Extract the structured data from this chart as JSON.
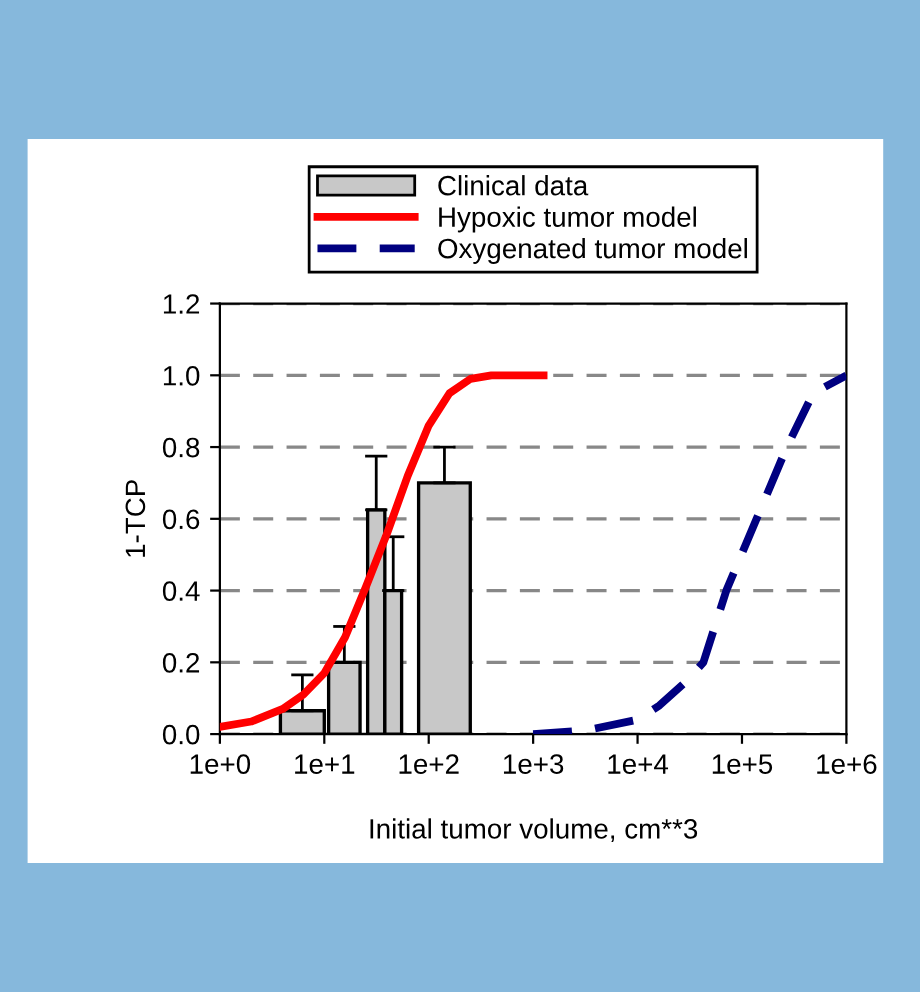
{
  "chart_data": {
    "type": "histogram",
    "xlabel": "Initial tumor volume, cm**3",
    "ylabel": "1-TCP",
    "log": "x",
    "xlim": [
      1,
      1000000
    ],
    "xticks": [
      {
        "value": 1,
        "label": "1e+0"
      },
      {
        "value": 10,
        "label": "1e+1"
      },
      {
        "value": 100,
        "label": "1e+2"
      },
      {
        "value": 1000,
        "label": "1e+3"
      },
      {
        "value": 10000,
        "label": "1e+4"
      },
      {
        "value": 100000,
        "label": "1e+5"
      },
      {
        "value": 1000000,
        "label": "1e+6"
      }
    ],
    "ylim": [
      0,
      1.2
    ],
    "yticks": [
      {
        "value": 0,
        "label": "0.0"
      },
      {
        "value": 0.2,
        "label": "0.2"
      },
      {
        "value": 0.4,
        "label": "0.4"
      },
      {
        "value": 0.6,
        "label": "0.6"
      },
      {
        "value": 0.8,
        "label": "0.8"
      },
      {
        "value": 1.0,
        "label": "1.0"
      },
      {
        "value": 1.2,
        "label": "1.2"
      }
    ],
    "grid": "y",
    "legend": "top",
    "series": [
      {
        "name": "Clinical data",
        "color": "#c8c8c8",
        "bins": [
          3.8,
          10,
          11,
          22,
          26,
          38,
          55,
          80,
          250
        ],
        "values": [
          0.065,
          null,
          0.2,
          null,
          0.625,
          0.4,
          null,
          0.7
        ],
        "errors": [
          [
            0.065,
            0.165
          ],
          null,
          [
            0.2,
            0.3
          ],
          null,
          [
            0.625,
            0.775
          ],
          [
            0.4,
            0.55
          ],
          null,
          [
            0.7,
            0.8
          ]
        ]
      },
      {
        "name": "Hypoxic tumor model",
        "type": "line",
        "line_style": "solid",
        "color": "#ff0000",
        "x": [
          1,
          2,
          4,
          6.3,
          10,
          15.8,
          25,
          40,
          63,
          100,
          158,
          251,
          398,
          1259
        ],
        "values": [
          0.02,
          0.035,
          0.07,
          0.11,
          0.17,
          0.27,
          0.41,
          0.56,
          0.72,
          0.86,
          0.95,
          0.99,
          1.0,
          1.0
        ]
      },
      {
        "name": "Oxygenated tumor model",
        "type": "line",
        "line_style": "dashed",
        "color": "#000080",
        "x": [
          1000,
          3162,
          10000,
          16200,
          30000,
          42700,
          70800,
          138000,
          269000,
          480000,
          1000000
        ],
        "values": [
          0,
          0.01,
          0.04,
          0.08,
          0.15,
          0.2,
          0.4,
          0.6,
          0.8,
          0.95,
          1.0
        ]
      }
    ]
  }
}
